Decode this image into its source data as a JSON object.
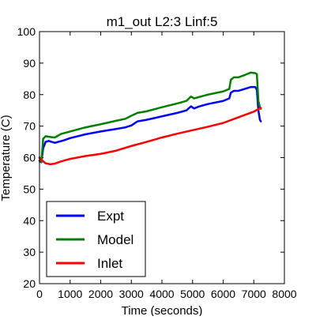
{
  "chart_data": {
    "type": "line",
    "title": "m1_out L2:3 Linf:5",
    "xlabel": "Time (seconds)",
    "ylabel": "Temperature (C)",
    "xlim": [
      0,
      8000
    ],
    "ylim": [
      20,
      100
    ],
    "xticks": [
      0,
      1000,
      2000,
      3000,
      4000,
      5000,
      6000,
      7000,
      8000
    ],
    "yticks": [
      20,
      30,
      40,
      50,
      60,
      70,
      80,
      90,
      100
    ],
    "grid": false,
    "legend_position": "lower-left",
    "series": [
      {
        "name": "Expt",
        "color": "#0000ff",
        "points": [
          [
            0,
            59
          ],
          [
            60,
            58.5
          ],
          [
            120,
            63
          ],
          [
            200,
            65
          ],
          [
            300,
            65.3
          ],
          [
            400,
            65
          ],
          [
            500,
            64.7
          ],
          [
            800,
            65.5
          ],
          [
            1000,
            66.2
          ],
          [
            1500,
            67.4
          ],
          [
            2000,
            68.3
          ],
          [
            2500,
            69.1
          ],
          [
            2800,
            69.6
          ],
          [
            3000,
            70.2
          ],
          [
            3200,
            71.5
          ],
          [
            3500,
            72
          ],
          [
            4000,
            73.1
          ],
          [
            4500,
            74.2
          ],
          [
            4800,
            75
          ],
          [
            4950,
            76.3
          ],
          [
            5050,
            75.6
          ],
          [
            5200,
            76.2
          ],
          [
            5500,
            77
          ],
          [
            6000,
            78
          ],
          [
            6200,
            78.8
          ],
          [
            6250,
            80.6
          ],
          [
            6350,
            81.2
          ],
          [
            6500,
            81.2
          ],
          [
            6700,
            81.8
          ],
          [
            6900,
            82.4
          ],
          [
            7050,
            82.4
          ],
          [
            7100,
            81.5
          ],
          [
            7150,
            75
          ],
          [
            7200,
            72
          ],
          [
            7230,
            71.5
          ]
        ]
      },
      {
        "name": "Model",
        "color": "#008000",
        "points": [
          [
            0,
            60
          ],
          [
            60,
            58.6
          ],
          [
            120,
            66
          ],
          [
            200,
            66.8
          ],
          [
            400,
            66.5
          ],
          [
            500,
            66.4
          ],
          [
            700,
            67.5
          ],
          [
            1000,
            68.3
          ],
          [
            1500,
            69.6
          ],
          [
            2000,
            70.6
          ],
          [
            2500,
            71.7
          ],
          [
            2800,
            72.3
          ],
          [
            3000,
            73.3
          ],
          [
            3200,
            74.2
          ],
          [
            3500,
            74.7
          ],
          [
            4000,
            76
          ],
          [
            4500,
            77.2
          ],
          [
            4800,
            78
          ],
          [
            4950,
            79.4
          ],
          [
            5050,
            78.8
          ],
          [
            5200,
            79.2
          ],
          [
            5500,
            80
          ],
          [
            6000,
            81
          ],
          [
            6200,
            81.8
          ],
          [
            6250,
            84.7
          ],
          [
            6350,
            85.5
          ],
          [
            6500,
            85.5
          ],
          [
            6700,
            86.2
          ],
          [
            6900,
            87
          ],
          [
            7050,
            86.8
          ],
          [
            7100,
            86.5
          ],
          [
            7150,
            78
          ],
          [
            7200,
            76
          ],
          [
            7230,
            75.5
          ]
        ]
      },
      {
        "name": "Inlet",
        "color": "#ff0000",
        "points": [
          [
            0,
            60
          ],
          [
            100,
            59
          ],
          [
            200,
            58.2
          ],
          [
            350,
            57.9
          ],
          [
            500,
            58.1
          ],
          [
            700,
            58.8
          ],
          [
            1000,
            59.6
          ],
          [
            1500,
            60.5
          ],
          [
            2000,
            61.2
          ],
          [
            2500,
            62.2
          ],
          [
            3000,
            63.7
          ],
          [
            3500,
            65
          ],
          [
            4000,
            66.4
          ],
          [
            4500,
            67.6
          ],
          [
            5000,
            68.7
          ],
          [
            5500,
            69.8
          ],
          [
            6000,
            71
          ],
          [
            6500,
            72.8
          ],
          [
            7000,
            74.6
          ],
          [
            7230,
            75.8
          ]
        ]
      }
    ]
  }
}
